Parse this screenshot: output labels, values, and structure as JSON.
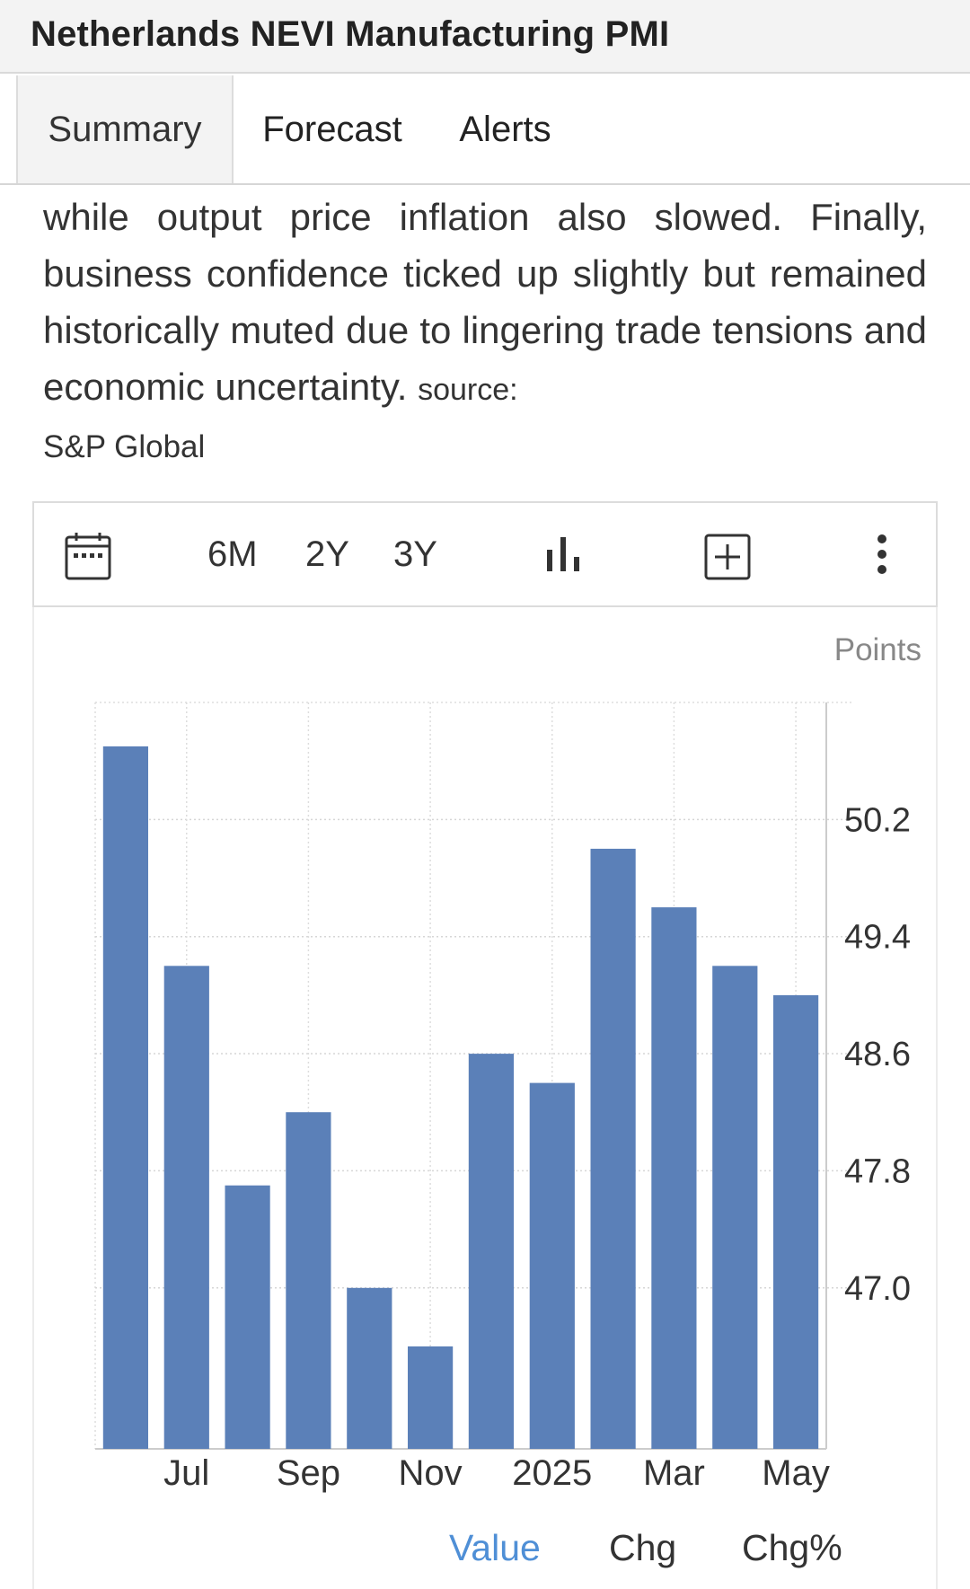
{
  "header": {
    "title": "Netherlands NEVI Manufacturing PMI"
  },
  "tabs": [
    {
      "label": "Summary",
      "active": true
    },
    {
      "label": "Forecast",
      "active": false
    },
    {
      "label": "Alerts",
      "active": false
    }
  ],
  "description": {
    "text": "while output price inflation also slowed. Finally, business confidence ticked up slightly but remained historically muted due to lingering trade tensions and economic uncertainty.",
    "source_label": "source:",
    "source_name": "S&P Global"
  },
  "toolbar": {
    "calendar_icon": "calendar-icon",
    "ranges": [
      "6M",
      "2Y",
      "3Y"
    ],
    "chart_type_icon": "bar-chart-icon",
    "add_icon": "plus-box-icon",
    "more_icon": "vertical-dots-icon"
  },
  "chart_data": {
    "type": "bar",
    "unit_label": "Points",
    "categories": [
      "Jun 2024",
      "Jul 2024",
      "Aug 2024",
      "Sep 2024",
      "Oct 2024",
      "Nov 2024",
      "Dec 2024",
      "Jan 2025",
      "Feb 2025",
      "Mar 2025",
      "Apr 2025",
      "May 2025"
    ],
    "x_tick_labels": [
      "Jul",
      "Sep",
      "Nov",
      "2025",
      "Mar",
      "May"
    ],
    "values": [
      50.7,
      49.2,
      47.7,
      48.2,
      47.0,
      46.6,
      48.6,
      48.4,
      50.0,
      49.6,
      49.2,
      49.0
    ],
    "y_ticks": [
      "50.2",
      "49.4",
      "48.6",
      "47.8",
      "47.0"
    ],
    "ylim": [
      45.9,
      51.0
    ],
    "grid": true,
    "bar_color": "#5b80b8"
  },
  "modes": [
    {
      "label": "Value",
      "active": true
    },
    {
      "label": "Chg",
      "active": false
    },
    {
      "label": "Chg%",
      "active": false
    }
  ]
}
